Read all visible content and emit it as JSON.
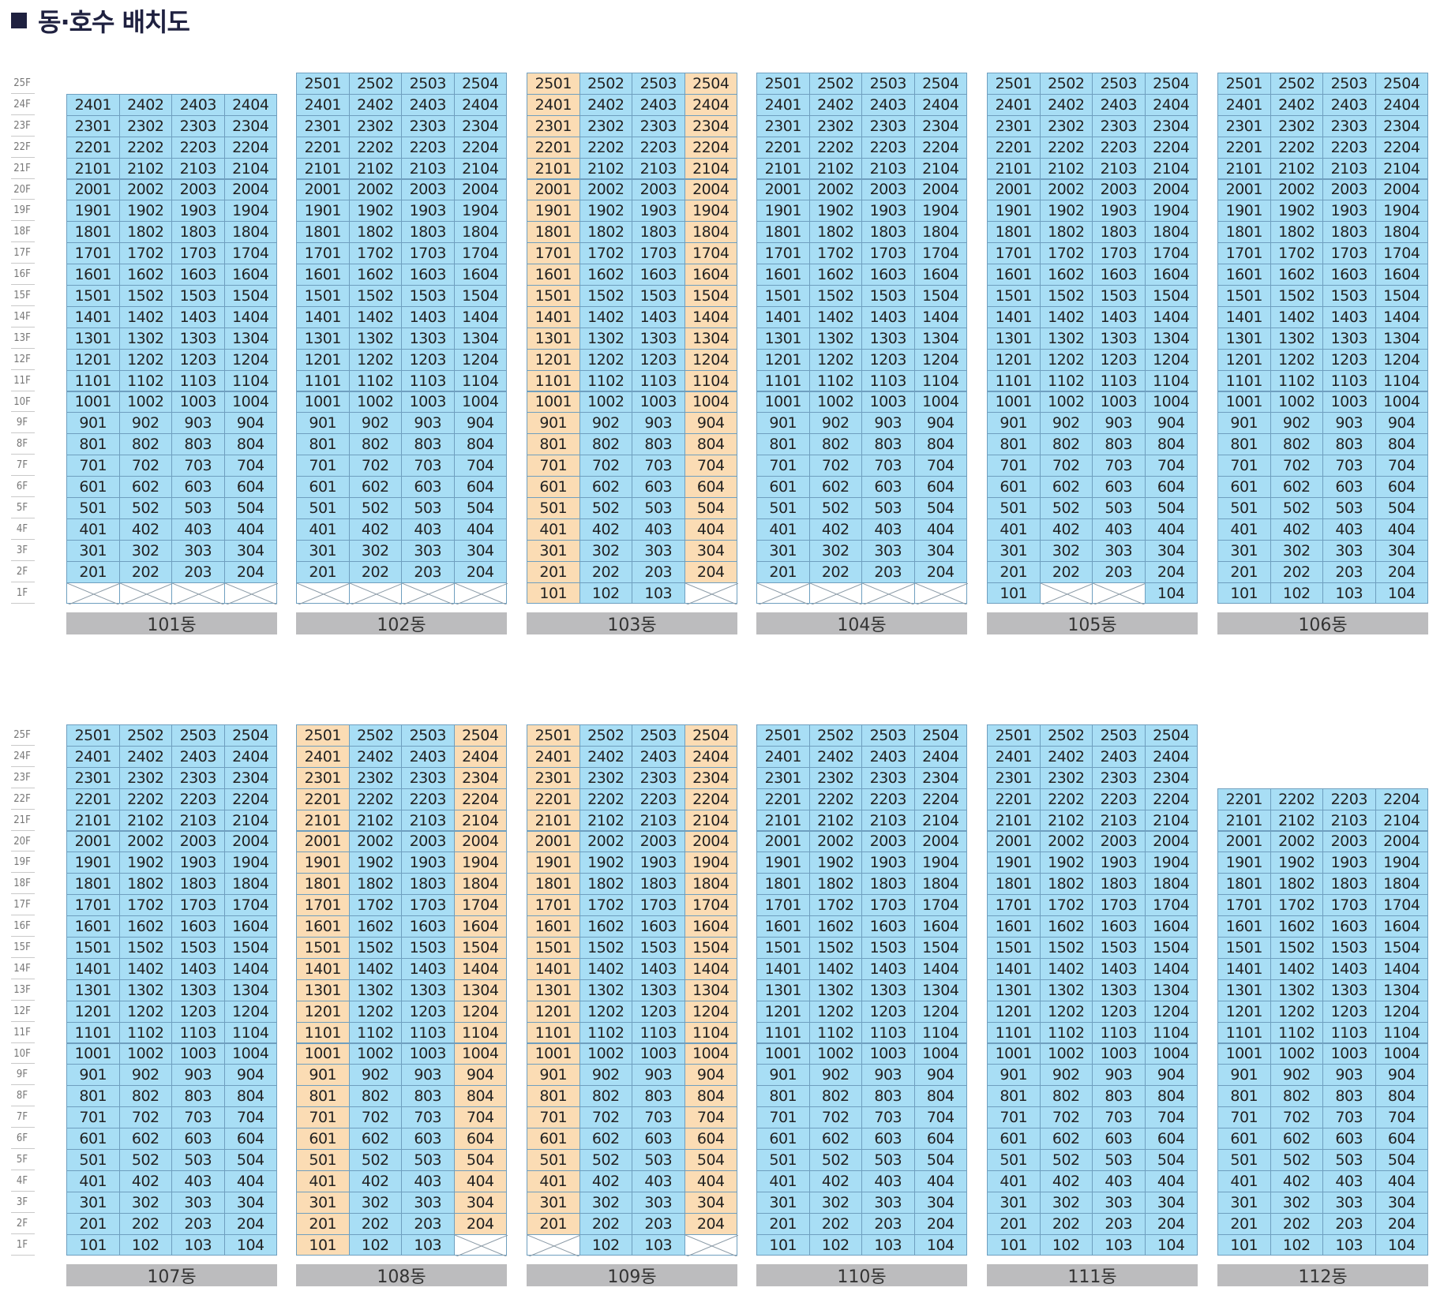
{
  "header": {
    "title": "동·호수 배치도"
  },
  "legend_colors": {
    "normal_unit": "#a8def5",
    "highlighted_unit": "#fbdcb4",
    "no_unit": "#ffffff"
  },
  "floor_labels": [
    "25F",
    "24F",
    "23F",
    "22F",
    "21F",
    "20F",
    "19F",
    "18F",
    "17F",
    "16F",
    "15F",
    "14F",
    "13F",
    "12F",
    "11F",
    "10F",
    "9F",
    "8F",
    "7F",
    "6F",
    "5F",
    "4F",
    "3F",
    "2F",
    "1F"
  ],
  "rows": [
    {
      "buildings": [
        {
          "name": "101동",
          "top_floor": 24,
          "orange_cols": [],
          "floor1": [
            "x",
            "x",
            "x",
            "x"
          ]
        },
        {
          "name": "102동",
          "top_floor": 25,
          "orange_cols": [],
          "floor1": [
            "x",
            "x",
            "x",
            "x"
          ]
        },
        {
          "name": "103동",
          "top_floor": 25,
          "orange_cols": [
            1,
            4
          ],
          "floor1": [
            "101",
            "102",
            "103",
            "x"
          ]
        },
        {
          "name": "104동",
          "top_floor": 25,
          "orange_cols": [],
          "floor1": [
            "x",
            "x",
            "x",
            "x"
          ]
        },
        {
          "name": "105동",
          "top_floor": 25,
          "orange_cols": [],
          "floor1": [
            "101",
            "x",
            "x",
            "104"
          ]
        },
        {
          "name": "106동",
          "top_floor": 25,
          "orange_cols": [],
          "floor1": [
            "101",
            "102",
            "103",
            "104"
          ]
        }
      ]
    },
    {
      "buildings": [
        {
          "name": "107동",
          "top_floor": 25,
          "orange_cols": [],
          "floor1": [
            "101",
            "102",
            "103",
            "104"
          ]
        },
        {
          "name": "108동",
          "top_floor": 25,
          "orange_cols": [
            1,
            4
          ],
          "floor1": [
            "101",
            "102",
            "103",
            "x"
          ]
        },
        {
          "name": "109동",
          "top_floor": 25,
          "orange_cols": [
            1,
            4
          ],
          "floor1": [
            "x",
            "102",
            "103",
            "x"
          ]
        },
        {
          "name": "110동",
          "top_floor": 25,
          "orange_cols": [],
          "floor1": [
            "101",
            "102",
            "103",
            "104"
          ]
        },
        {
          "name": "111동",
          "top_floor": 25,
          "orange_cols": [],
          "floor1": [
            "101",
            "102",
            "103",
            "104"
          ]
        },
        {
          "name": "112동",
          "top_floor": 22,
          "orange_cols": [],
          "floor1": [
            "101",
            "102",
            "103",
            "104"
          ]
        }
      ]
    }
  ]
}
